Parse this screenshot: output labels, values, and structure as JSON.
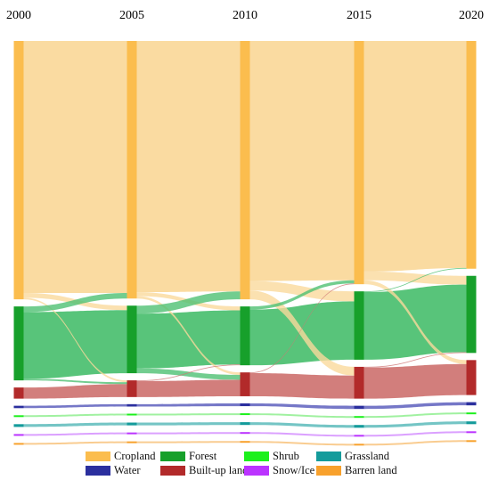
{
  "chart_data": {
    "type": "sankey",
    "title": "",
    "years": [
      "2000",
      "2005",
      "2010",
      "2015",
      "2020"
    ],
    "categories": [
      {
        "key": "cropland",
        "name": "Cropland",
        "color": "#FBBD4E",
        "flow_color": "#FAD99C"
      },
      {
        "key": "forest",
        "name": "Forest",
        "color": "#17A02B",
        "flow_color": "#4FC173"
      },
      {
        "key": "water",
        "name": "Water",
        "color": "#2B2F9E",
        "flow_color": "#6E70C4"
      },
      {
        "key": "builtup",
        "name": "Built-up land",
        "color": "#B22A2A",
        "flow_color": "#D07775"
      },
      {
        "key": "shrub",
        "name": "Shrub",
        "color": "#1CF01C",
        "flow_color": "#9BF09B"
      },
      {
        "key": "snow",
        "name": "Snow/Ice",
        "color": "#BB33FF",
        "flow_color": "#D99BFF"
      },
      {
        "key": "grassland",
        "name": "Grassland",
        "color": "#149B9B",
        "flow_color": "#6DC2C2"
      },
      {
        "key": "barren",
        "name": "Barren land",
        "color": "#F8A12C",
        "flow_color": "#F9C98A"
      }
    ],
    "node_order": [
      "cropland",
      "forest",
      "builtup",
      "water",
      "shrub",
      "grassland",
      "snow",
      "barren"
    ],
    "stock_values": {
      "cropland": [
        650,
        648,
        650,
        612,
        573
      ],
      "forest": [
        186,
        170,
        148,
        172,
        194
      ],
      "builtup": [
        28,
        42,
        60,
        80,
        88
      ],
      "water": [
        6,
        6,
        7,
        8,
        8
      ],
      "shrub": [
        3,
        3,
        3,
        3,
        3
      ],
      "grassland": [
        7,
        7,
        7,
        7,
        7
      ],
      "snow": [
        1,
        1,
        1,
        1,
        1
      ],
      "barren": [
        2,
        2,
        2,
        2,
        2
      ]
    },
    "transitions": [
      {
        "from": "cropland",
        "to": "forest",
        "period": 0,
        "value": 12
      },
      {
        "from": "cropland",
        "to": "builtup",
        "period": 0,
        "value": 4
      },
      {
        "from": "forest",
        "to": "cropland",
        "period": 0,
        "value": 14
      },
      {
        "from": "forest",
        "to": "builtup",
        "period": 0,
        "value": 4
      },
      {
        "from": "cropland",
        "to": "forest",
        "period": 1,
        "value": 10
      },
      {
        "from": "cropland",
        "to": "builtup",
        "period": 1,
        "value": 6
      },
      {
        "from": "forest",
        "to": "cropland",
        "period": 1,
        "value": 20
      },
      {
        "from": "forest",
        "to": "builtup",
        "period": 1,
        "value": 12
      },
      {
        "from": "builtup",
        "to": "forest",
        "period": 1,
        "value": 2
      },
      {
        "from": "cropland",
        "to": "forest",
        "period": 2,
        "value": 24
      },
      {
        "from": "cropland",
        "to": "builtup",
        "period": 2,
        "value": 22
      },
      {
        "from": "forest",
        "to": "cropland",
        "period": 2,
        "value": 8
      },
      {
        "from": "builtup",
        "to": "cropland",
        "period": 2,
        "value": 2
      },
      {
        "from": "cropland",
        "to": "forest",
        "period": 3,
        "value": 22
      },
      {
        "from": "cropland",
        "to": "builtup",
        "period": 3,
        "value": 10
      },
      {
        "from": "forest",
        "to": "cropland",
        "period": 3,
        "value": 2
      },
      {
        "from": "builtup",
        "to": "forest",
        "period": 3,
        "value": 2
      }
    ]
  }
}
